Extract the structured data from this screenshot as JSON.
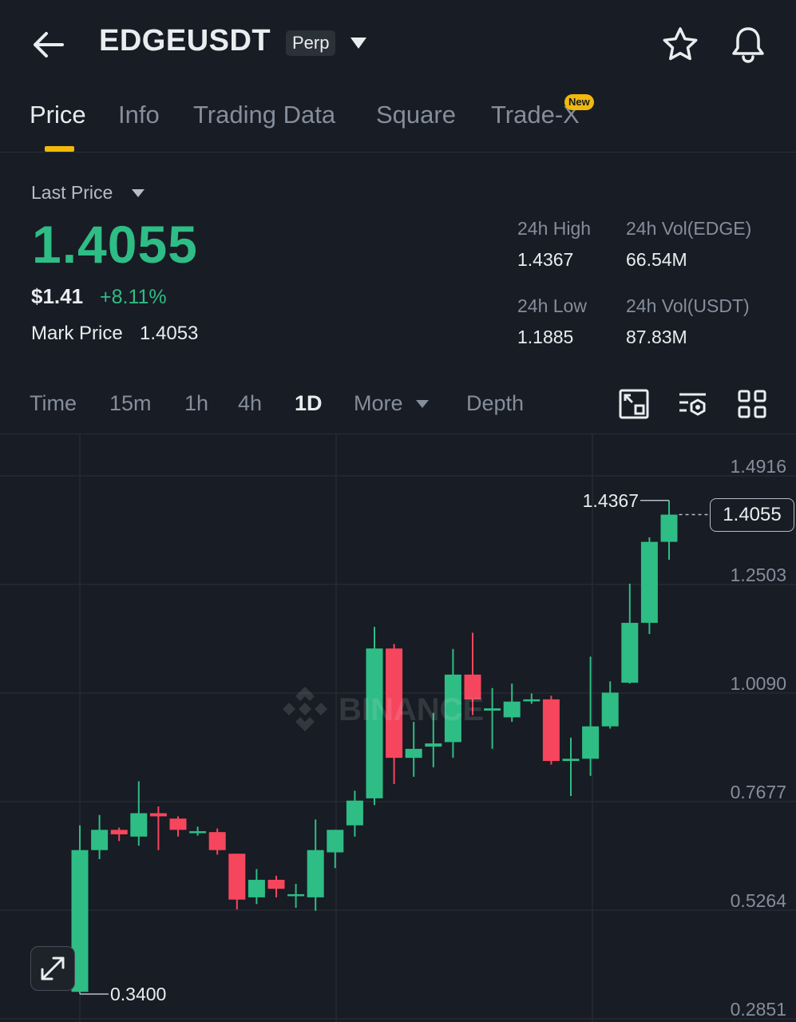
{
  "header": {
    "symbol": "EDGEUSDT",
    "badge": "Perp"
  },
  "tabs": [
    {
      "label": "Price",
      "active": true
    },
    {
      "label": "Info"
    },
    {
      "label": "Trading Data"
    },
    {
      "label": "Square"
    },
    {
      "label": "Trade-X",
      "badge": "New"
    }
  ],
  "price_section": {
    "last_price_label": "Last Price",
    "last_price": "1.4055",
    "usd_price": "$1.41",
    "change_pct": "+8.11%",
    "mark_price_label": "Mark Price",
    "mark_price": "1.4053",
    "stats": {
      "high_label": "24h High",
      "high_value": "1.4367",
      "vol_base_label": "24h Vol(EDGE)",
      "vol_base_value": "66.54M",
      "low_label": "24h Low",
      "low_value": "1.1885",
      "vol_quote_label": "24h Vol(USDT)",
      "vol_quote_value": "87.83M"
    }
  },
  "intervals": {
    "items": [
      "Time",
      "15m",
      "1h",
      "4h",
      "1D",
      "More",
      "Depth"
    ],
    "active": "1D"
  },
  "colors": {
    "up": "#2ebd85",
    "down": "#f6465d",
    "accent": "#f0b90b",
    "bg": "#181c24"
  },
  "chart_data": {
    "type": "candlestick",
    "y_ticks": [
      "1.4916",
      "1.2503",
      "1.0090",
      "0.7677",
      "0.5264",
      "0.2851"
    ],
    "ylim": [
      0.2851,
      1.4916
    ],
    "max_label": "1.4367",
    "min_label": "0.3400",
    "current_price": "1.4055",
    "watermark": "BINANCE",
    "candles": [
      {
        "o": 0.345,
        "h": 0.715,
        "l": 0.34,
        "c": 0.66
      },
      {
        "o": 0.66,
        "h": 0.738,
        "l": 0.64,
        "c": 0.705
      },
      {
        "o": 0.705,
        "h": 0.71,
        "l": 0.68,
        "c": 0.695
      },
      {
        "o": 0.69,
        "h": 0.813,
        "l": 0.67,
        "c": 0.742
      },
      {
        "o": 0.742,
        "h": 0.757,
        "l": 0.66,
        "c": 0.735
      },
      {
        "o": 0.73,
        "h": 0.735,
        "l": 0.69,
        "c": 0.705
      },
      {
        "o": 0.702,
        "h": 0.712,
        "l": 0.692,
        "c": 0.702
      },
      {
        "o": 0.7,
        "h": 0.708,
        "l": 0.65,
        "c": 0.66
      },
      {
        "o": 0.652,
        "h": 0.652,
        "l": 0.528,
        "c": 0.55
      },
      {
        "o": 0.555,
        "h": 0.618,
        "l": 0.54,
        "c": 0.594
      },
      {
        "o": 0.594,
        "h": 0.603,
        "l": 0.555,
        "c": 0.574
      },
      {
        "o": 0.562,
        "h": 0.585,
        "l": 0.532,
        "c": 0.562
      },
      {
        "o": 0.555,
        "h": 0.728,
        "l": 0.525,
        "c": 0.66
      },
      {
        "o": 0.655,
        "h": 0.705,
        "l": 0.62,
        "c": 0.705
      },
      {
        "o": 0.715,
        "h": 0.792,
        "l": 0.69,
        "c": 0.77
      },
      {
        "o": 0.775,
        "h": 1.156,
        "l": 0.76,
        "c": 1.108
      },
      {
        "o": 1.108,
        "h": 1.118,
        "l": 0.807,
        "c": 0.865
      },
      {
        "o": 0.865,
        "h": 0.945,
        "l": 0.823,
        "c": 0.885
      },
      {
        "o": 0.89,
        "h": 0.965,
        "l": 0.844,
        "c": 0.897
      },
      {
        "o": 0.9,
        "h": 1.107,
        "l": 0.865,
        "c": 1.05
      },
      {
        "o": 1.05,
        "h": 1.143,
        "l": 0.96,
        "c": 0.995
      },
      {
        "o": 0.97,
        "h": 1.02,
        "l": 0.885,
        "c": 0.975
      },
      {
        "o": 0.955,
        "h": 1.03,
        "l": 0.945,
        "c": 0.99
      },
      {
        "o": 0.995,
        "h": 1.008,
        "l": 0.985,
        "c": 0.995
      },
      {
        "o": 0.995,
        "h": 1.003,
        "l": 0.85,
        "c": 0.858
      },
      {
        "o": 0.858,
        "h": 0.91,
        "l": 0.78,
        "c": 0.863
      },
      {
        "o": 0.863,
        "h": 1.09,
        "l": 0.825,
        "c": 0.935
      },
      {
        "o": 0.935,
        "h": 1.035,
        "l": 0.93,
        "c": 1.01
      },
      {
        "o": 1.032,
        "h": 1.252,
        "l": 1.03,
        "c": 1.165
      },
      {
        "o": 1.165,
        "h": 1.355,
        "l": 1.14,
        "c": 1.345
      },
      {
        "o": 1.345,
        "h": 1.437,
        "l": 1.305,
        "c": 1.4055
      }
    ]
  }
}
